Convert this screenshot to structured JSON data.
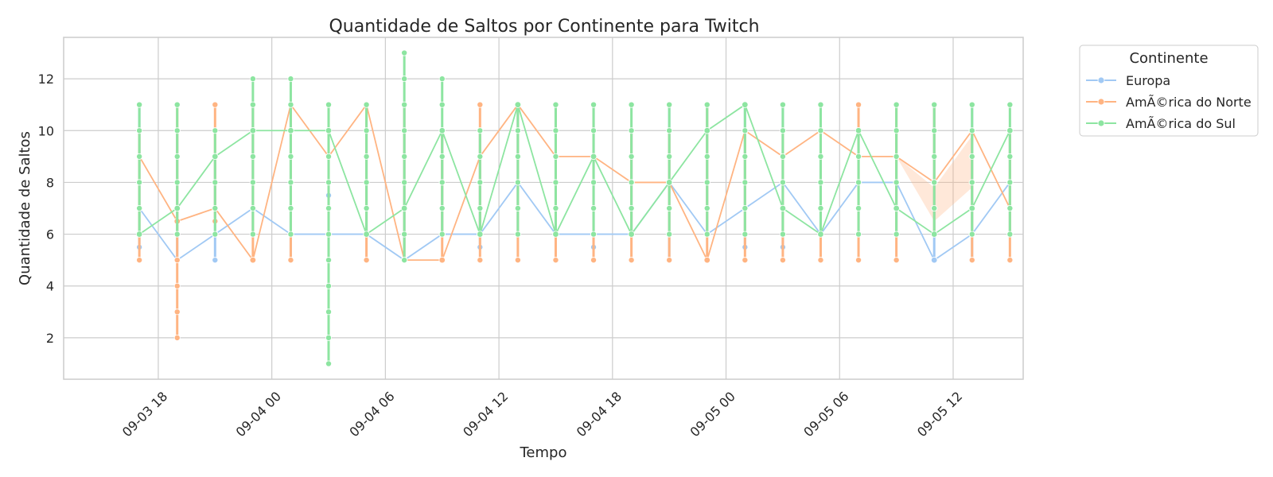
{
  "chart_data": {
    "type": "line",
    "title": "Quantidade de Saltos por Continente para Twitch",
    "xlabel": "Tempo",
    "ylabel": "Quantidade de Saltos",
    "x_ticks": [
      "09-03 18",
      "09-04 00",
      "09-04 06",
      "09-04 12",
      "09-04 18",
      "09-05 00",
      "09-05 06",
      "09-05 12"
    ],
    "x_tick_hours": [
      18,
      24,
      30,
      36,
      42,
      48,
      54,
      60
    ],
    "x_range_hours": [
      13.0,
      63.7
    ],
    "y_ticks": [
      2,
      4,
      6,
      8,
      10,
      12
    ],
    "ylim": [
      0.4,
      13.6
    ],
    "grid": true,
    "legend": {
      "title": "Continente",
      "position": "outside-right"
    },
    "x_hours": [
      17,
      19,
      21,
      23,
      25,
      27,
      29,
      31,
      33,
      35,
      37,
      39,
      41,
      43,
      45,
      47,
      49,
      51,
      53,
      55,
      57,
      59,
      61,
      63
    ],
    "series": [
      {
        "name": "Europa",
        "color": "#a1c9f4",
        "mean": [
          7,
          5,
          6,
          7,
          6,
          6,
          6,
          5,
          6,
          6,
          8,
          6,
          6,
          6,
          8,
          6,
          7,
          8,
          6,
          8,
          8,
          5,
          6,
          8
        ],
        "range": [
          [
            5.5,
            11
          ],
          [
            5,
            10
          ],
          [
            5,
            9
          ],
          [
            6,
            11
          ],
          [
            5,
            11
          ],
          [
            5,
            7.5
          ],
          [
            6,
            10
          ],
          [
            5,
            11
          ],
          [
            6,
            10
          ],
          [
            5.5,
            10
          ],
          [
            6,
            11
          ],
          [
            6,
            11
          ],
          [
            5.5,
            11
          ],
          [
            6,
            10
          ],
          [
            5,
            11
          ],
          [
            6,
            11
          ],
          [
            5.5,
            11
          ],
          [
            5.5,
            11
          ],
          [
            6,
            10
          ],
          [
            6,
            10
          ],
          [
            6,
            10
          ],
          [
            5,
            11
          ],
          [
            5,
            11
          ],
          [
            6,
            10
          ]
        ]
      },
      {
        "name": "AmÃ©rica do Norte",
        "color": "#ffb482",
        "mean": [
          9,
          6.5,
          7,
          5,
          11,
          9,
          11,
          5,
          5,
          9,
          11,
          9,
          9,
          8,
          8,
          5,
          10,
          9,
          10,
          9,
          9,
          8,
          10,
          7
        ],
        "range": [
          [
            5,
            10
          ],
          [
            2,
            11
          ],
          [
            6.5,
            11
          ],
          [
            5,
            11
          ],
          [
            5,
            11
          ],
          [
            5,
            11
          ],
          [
            5,
            11
          ],
          [
            5,
            11
          ],
          [
            5,
            10
          ],
          [
            5,
            11
          ],
          [
            5,
            11
          ],
          [
            5,
            11
          ],
          [
            5,
            11
          ],
          [
            5,
            10
          ],
          [
            5,
            10
          ],
          [
            5,
            11
          ],
          [
            5,
            10
          ],
          [
            5,
            10
          ],
          [
            5,
            10
          ],
          [
            5,
            11
          ],
          [
            5,
            11
          ],
          [
            6,
            11
          ],
          [
            5,
            10
          ],
          [
            5,
            10
          ]
        ],
        "ci_band": {
          "from_index": 20,
          "to_index": 22,
          "lower": [
            9,
            6.5,
            7.8
          ],
          "upper": [
            9,
            7.8,
            9.8
          ]
        }
      },
      {
        "name": "AmÃ©rica do Sul",
        "color": "#8de5a1",
        "mean": [
          6,
          7,
          9,
          10,
          10,
          10,
          6,
          7,
          10,
          6,
          11,
          6,
          9,
          6,
          8,
          10,
          11,
          7,
          6,
          10,
          7,
          6,
          7,
          10
        ],
        "range": [
          [
            6,
            11
          ],
          [
            6,
            11
          ],
          [
            6,
            10
          ],
          [
            6,
            12
          ],
          [
            6,
            12
          ],
          [
            1,
            11
          ],
          [
            6,
            11
          ],
          [
            5,
            13
          ],
          [
            6,
            12
          ],
          [
            6,
            10
          ],
          [
            6,
            11
          ],
          [
            6,
            11
          ],
          [
            6,
            11
          ],
          [
            6,
            11
          ],
          [
            6,
            11
          ],
          [
            6,
            11
          ],
          [
            6,
            11
          ],
          [
            6,
            11
          ],
          [
            6,
            11
          ],
          [
            6,
            10
          ],
          [
            6,
            11
          ],
          [
            6,
            11
          ],
          [
            6,
            11
          ],
          [
            6,
            11
          ]
        ]
      }
    ]
  }
}
